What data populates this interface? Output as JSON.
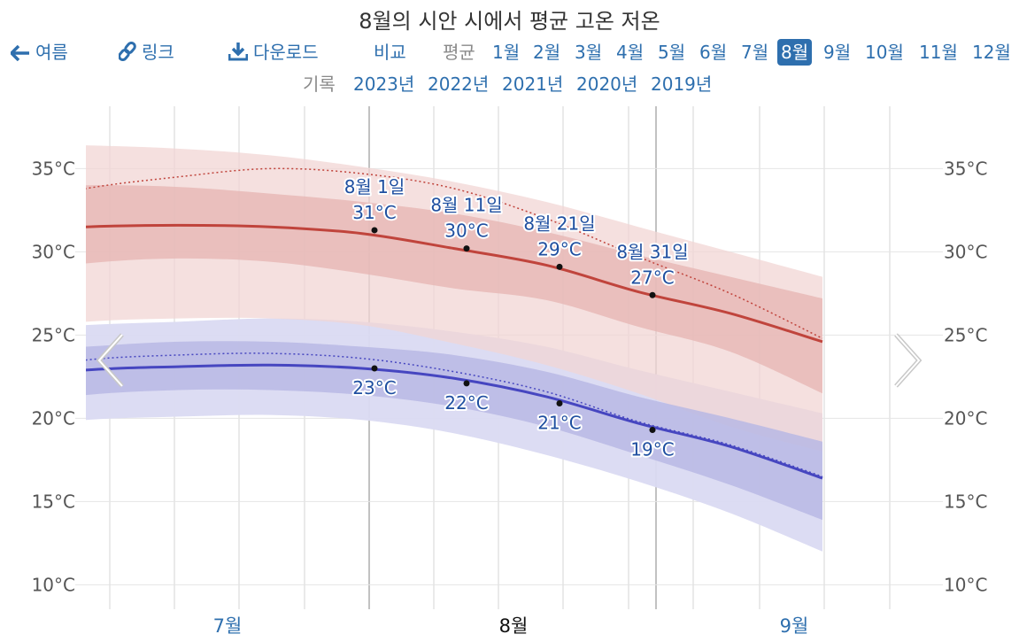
{
  "title": "8월의 시안 시에서 평균 고온 저온",
  "nav": {
    "back_label": "여름",
    "link_label": "링크",
    "download_label": "다운로드",
    "compare_label": "비교",
    "average_label": "평균",
    "months": [
      "1월",
      "2월",
      "3월",
      "4월",
      "5월",
      "6월",
      "7월",
      "8월",
      "9월",
      "10월",
      "11월",
      "12월"
    ],
    "selected_month": "8월"
  },
  "history": {
    "label": "기록",
    "years": [
      "2023년",
      "2022년",
      "2021년",
      "2020년",
      "2019년"
    ]
  },
  "colors": {
    "high_line": "#c0443c",
    "high_band_inner": "#e6b4b1",
    "high_band_outer": "#f2d6d4",
    "low_line": "#4646c0",
    "low_band_inner": "#b8b8e4",
    "low_band_outer": "#dadaf2",
    "annotation": "#1f4fa0",
    "nav_blue": "#2e6fae"
  },
  "chart_data": {
    "type": "line",
    "x_labels": [
      "7월",
      "8월",
      "9월"
    ],
    "y_ticks": [
      "10°C",
      "15°C",
      "20°C",
      "25°C",
      "30°C",
      "35°C"
    ],
    "ylim": [
      8,
      38
    ],
    "x_days": [
      -1,
      0,
      1,
      2,
      3,
      4,
      5,
      6,
      7,
      8
    ],
    "series": [
      {
        "key": "high",
        "values": [
          31.2,
          31.5,
          31.6,
          31.5,
          31.1,
          30.2,
          29.2,
          27.6,
          26.3,
          24.6
        ]
      },
      {
        "key": "high_p25",
        "values": [
          28.5,
          29.3,
          29.6,
          29.4,
          28.7,
          27.8,
          27.1,
          25.5,
          24.0,
          21.5
        ]
      },
      {
        "key": "high_p75",
        "values": [
          33.8,
          34.0,
          33.9,
          33.5,
          33.0,
          32.3,
          31.2,
          29.8,
          28.5,
          27.2
        ]
      },
      {
        "key": "high_p10",
        "values": [
          25.2,
          25.8,
          26.0,
          26.0,
          25.6,
          24.5,
          23.2,
          21.5,
          19.5,
          18.0
        ]
      },
      {
        "key": "high_p90",
        "values": [
          36.5,
          36.4,
          36.2,
          35.8,
          35.1,
          34.2,
          33.0,
          31.5,
          30.0,
          28.5
        ]
      },
      {
        "key": "high_avg_dotted",
        "values": [
          32.6,
          33.8,
          34.5,
          35.0,
          34.7,
          33.8,
          32.0,
          29.7,
          27.5,
          24.8
        ]
      },
      {
        "key": "low",
        "values": [
          22.3,
          22.9,
          23.1,
          23.2,
          23.0,
          22.4,
          21.3,
          19.7,
          18.3,
          16.4
        ]
      },
      {
        "key": "low_p25",
        "values": [
          20.7,
          21.4,
          21.7,
          21.7,
          21.4,
          20.7,
          19.5,
          17.8,
          16.0,
          13.9
        ]
      },
      {
        "key": "low_p75",
        "values": [
          23.9,
          24.3,
          24.6,
          24.6,
          24.3,
          23.8,
          22.8,
          21.3,
          20.0,
          18.6
        ]
      },
      {
        "key": "low_p10",
        "values": [
          19.3,
          19.9,
          20.1,
          20.2,
          19.9,
          19.1,
          17.8,
          16.2,
          14.3,
          12.0
        ]
      },
      {
        "key": "low_p90",
        "values": [
          25.2,
          25.6,
          25.8,
          26.0,
          25.8,
          25.2,
          24.3,
          22.9,
          21.6,
          20.3
        ]
      },
      {
        "key": "low_avg_dotted",
        "values": [
          22.6,
          23.5,
          23.8,
          23.9,
          23.6,
          22.8,
          21.6,
          19.8,
          18.4,
          16.5
        ]
      }
    ],
    "annotations": [
      {
        "date": "8월 1일",
        "high": "31°C",
        "low": "23°C",
        "high_value": 31.3,
        "low_value": 23.0
      },
      {
        "date": "8월 11일",
        "high": "30°C",
        "low": "22°C",
        "high_value": 30.2,
        "low_value": 22.1
      },
      {
        "date": "8월 21일",
        "high": "29°C",
        "low": "21°C",
        "high_value": 29.1,
        "low_value": 20.9
      },
      {
        "date": "8월 31일",
        "high": "27°C",
        "low": "19°C",
        "high_value": 27.4,
        "low_value": 19.3
      }
    ]
  }
}
